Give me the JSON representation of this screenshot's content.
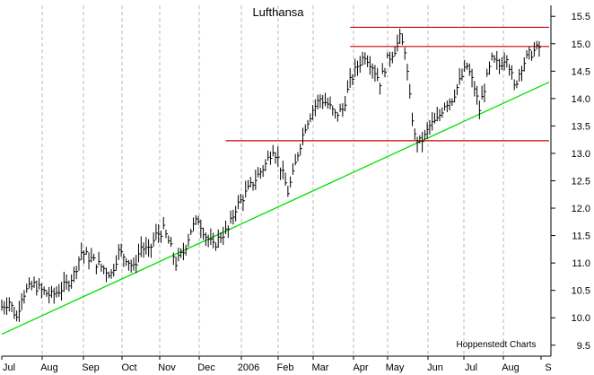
{
  "chart_data": {
    "type": "line",
    "style": "ohlc-bar",
    "title": "Lufthansa",
    "credit": "Hoppenstedt Charts",
    "x_axis": {
      "labels": [
        "Jul",
        "Aug",
        "Sep",
        "Oct",
        "Nov",
        "Dec",
        "2006",
        "Feb",
        "Mar",
        "Apr",
        "May",
        "Jun",
        "Jul",
        "Aug",
        "S"
      ]
    },
    "y_axis": {
      "position": "right",
      "ylim": [
        9.3,
        15.7
      ],
      "ticks": [
        9.5,
        10.0,
        10.5,
        11.0,
        11.5,
        12.0,
        12.5,
        13.0,
        13.5,
        14.0,
        14.5,
        15.0,
        15.5
      ]
    },
    "grid": {
      "x": true,
      "y": false,
      "style": "dashed"
    },
    "series": [
      {
        "points": [
          [
            0,
            10.2
          ],
          [
            3,
            10.3
          ],
          [
            6,
            10.0
          ],
          [
            8,
            10.4
          ],
          [
            10,
            10.5
          ],
          [
            13,
            10.6
          ],
          [
            16,
            10.5
          ],
          [
            20,
            10.4
          ],
          [
            23,
            10.5
          ],
          [
            26,
            10.6
          ],
          [
            29,
            10.8
          ],
          [
            32,
            11.2
          ],
          [
            35,
            11.1
          ],
          [
            38,
            11.0
          ],
          [
            41,
            10.9
          ],
          [
            44,
            10.8
          ],
          [
            47,
            11.2
          ],
          [
            50,
            11.1
          ],
          [
            53,
            10.9
          ],
          [
            56,
            11.3
          ],
          [
            59,
            11.2
          ],
          [
            62,
            11.5
          ],
          [
            65,
            11.6
          ],
          [
            67,
            11.4
          ],
          [
            70,
            11.0
          ],
          [
            73,
            11.2
          ],
          [
            76,
            11.6
          ],
          [
            79,
            11.8
          ],
          [
            82,
            11.5
          ],
          [
            85,
            11.3
          ],
          [
            88,
            11.5
          ],
          [
            91,
            11.6
          ],
          [
            94,
            12.0
          ],
          [
            97,
            12.2
          ],
          [
            100,
            12.4
          ],
          [
            103,
            12.6
          ],
          [
            106,
            12.8
          ],
          [
            109,
            13.1
          ],
          [
            111,
            12.9
          ],
          [
            113,
            12.6
          ],
          [
            115,
            12.3
          ],
          [
            117,
            12.6
          ],
          [
            119,
            13.0
          ],
          [
            122,
            13.5
          ],
          [
            125,
            13.8
          ],
          [
            128,
            14.0
          ],
          [
            131,
            13.9
          ],
          [
            134,
            13.7
          ],
          [
            137,
            13.8
          ],
          [
            140,
            14.3
          ],
          [
            143,
            14.6
          ],
          [
            146,
            14.8
          ],
          [
            149,
            14.6
          ],
          [
            152,
            14.3
          ],
          [
            155,
            14.7
          ],
          [
            158,
            14.9
          ],
          [
            160,
            15.1
          ],
          [
            162,
            14.9
          ],
          [
            164,
            14.0
          ],
          [
            166,
            13.3
          ],
          [
            168,
            13.2
          ],
          [
            170,
            13.3
          ],
          [
            172,
            13.5
          ],
          [
            175,
            13.6
          ],
          [
            178,
            13.9
          ],
          [
            181,
            14.0
          ],
          [
            184,
            14.3
          ],
          [
            187,
            14.6
          ],
          [
            190,
            14.2
          ],
          [
            192,
            13.8
          ],
          [
            194,
            14.2
          ],
          [
            197,
            14.7
          ],
          [
            200,
            14.6
          ],
          [
            203,
            14.8
          ],
          [
            206,
            14.2
          ],
          [
            209,
            14.6
          ],
          [
            212,
            14.8
          ],
          [
            215,
            14.9
          ]
        ]
      }
    ],
    "annotations": {
      "trendline": {
        "color": "#00e000",
        "start": [
          0,
          9.7
        ],
        "end": [
          220,
          14.3
        ]
      },
      "horizontal_lines": [
        {
          "color": "#cc0000",
          "y": 15.3,
          "x_start": 140,
          "x_end": 220
        },
        {
          "color": "#cc0000",
          "y": 14.95,
          "x_start": 140,
          "x_end": 220
        },
        {
          "color": "#cc0000",
          "y": 13.23,
          "x_start": 90,
          "x_end": 220
        }
      ]
    }
  }
}
